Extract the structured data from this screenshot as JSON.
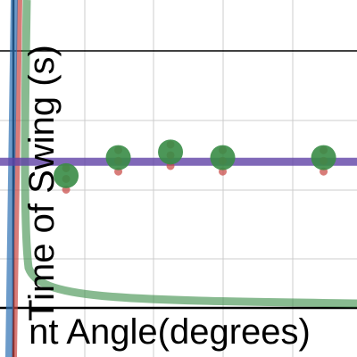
{
  "chart_data": {
    "type": "scatter",
    "xlabel": "nt Angle(degrees)",
    "ylabel": "Time of Swing (s)",
    "xlim": [
      -2,
      49.3
    ],
    "ylim": [
      -0.35,
      2.21
    ],
    "x": [
      7.5,
      15,
      22.5,
      30,
      44.5
    ],
    "series": [
      {
        "color": "#388c46",
        "values": [
          0.95,
          1.08,
          1.12,
          1.08,
          1.08
        ],
        "errors": [
          0.1,
          0.1,
          0.1,
          0.1,
          0.1
        ],
        "error_color": "#c74440"
      }
    ],
    "fit_line": {
      "value": 1.05,
      "color": "#6042a6"
    }
  }
}
